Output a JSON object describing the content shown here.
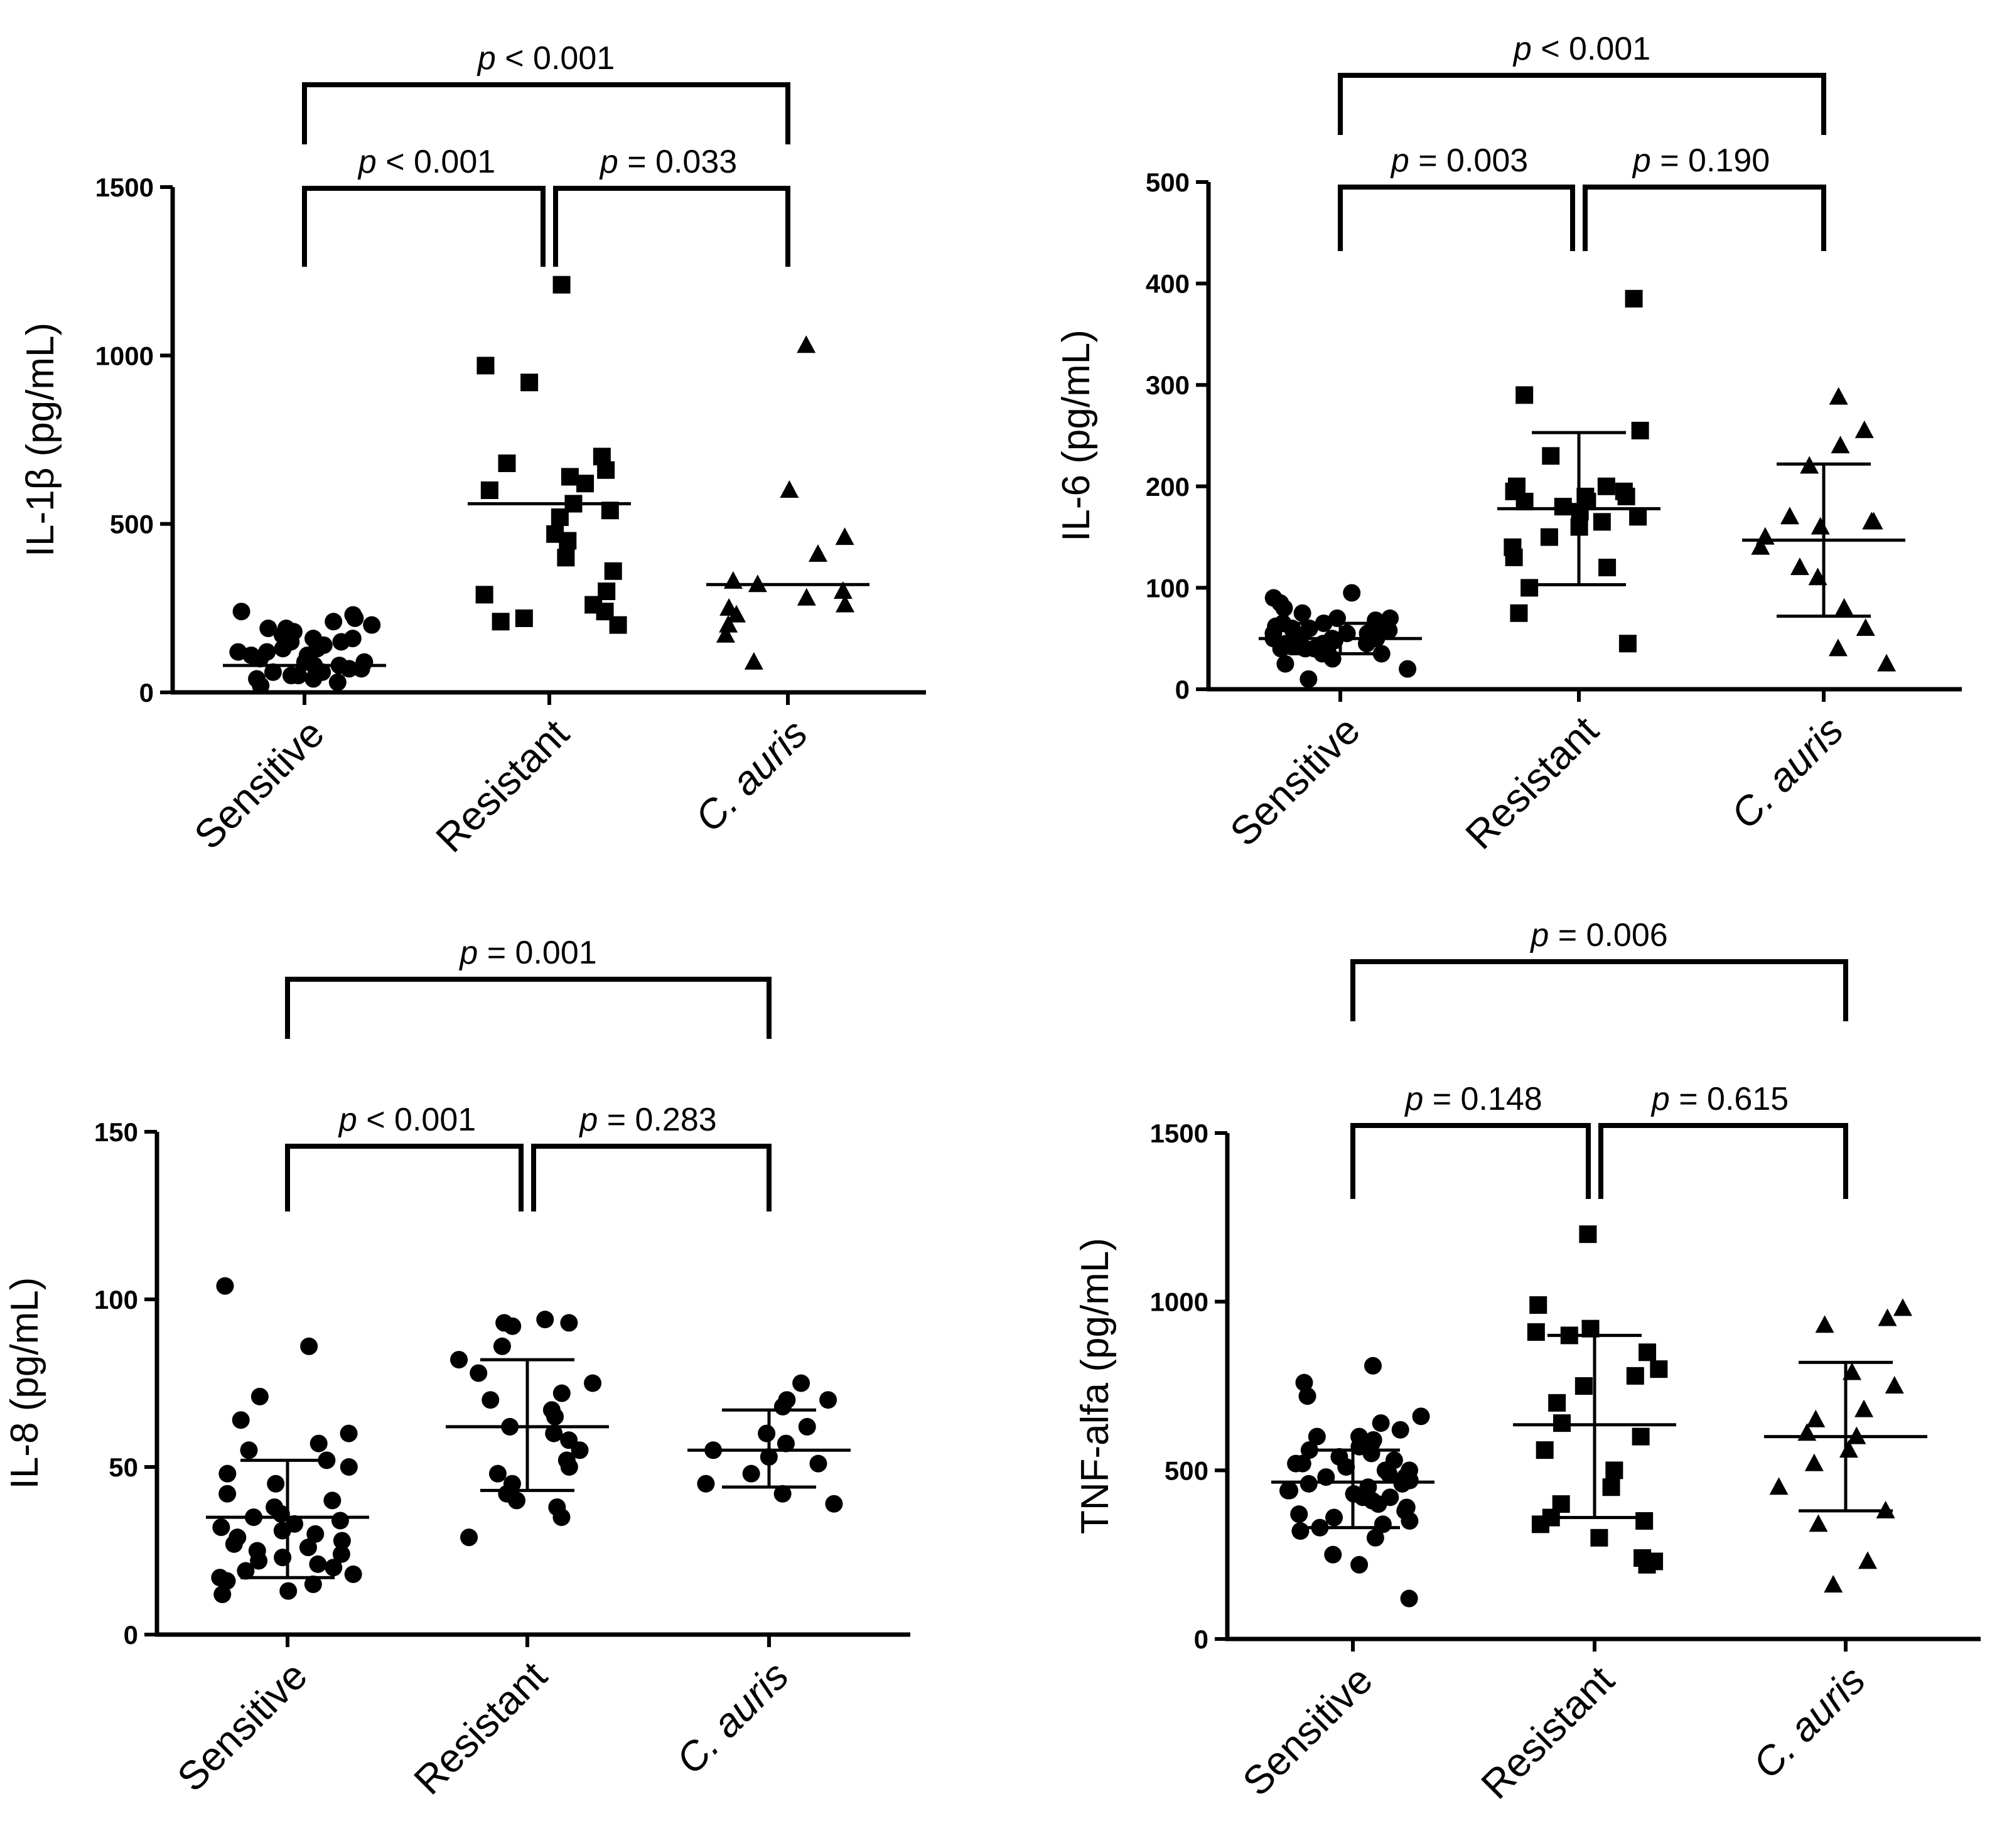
{
  "chart_data": [
    {
      "id": "il1b",
      "type": "scatter",
      "ylabel": "IL-1β (pg/mL)",
      "ylim": [
        0,
        1500
      ],
      "yticks": [
        "0",
        "500",
        "1000",
        "1500"
      ],
      "categories": [
        "Sensitive",
        "Resistant",
        "C. auris"
      ],
      "category_markers": [
        "circle",
        "square",
        "triangle"
      ],
      "series": [
        {
          "name": "Sensitive",
          "center": 80,
          "values": [
            20,
            30,
            40,
            50,
            60,
            70,
            80,
            90,
            100,
            110,
            120,
            130,
            140,
            150,
            160,
            170,
            180,
            190,
            200,
            210,
            220,
            230,
            240,
            60,
            90,
            120,
            150,
            40,
            70,
            100,
            130,
            160,
            190,
            50,
            80,
            110,
            140
          ]
        },
        {
          "name": "Resistant",
          "center": 560,
          "values": [
            1210,
            970,
            920,
            700,
            680,
            660,
            640,
            620,
            600,
            560,
            540,
            520,
            470,
            450,
            400,
            360,
            300,
            290,
            260,
            240,
            220,
            210,
            200
          ]
        },
        {
          "name": "C. auris",
          "center": 320,
          "values": [
            1030,
            600,
            460,
            410,
            330,
            320,
            300,
            280,
            260,
            250,
            230,
            200,
            170,
            90
          ]
        }
      ],
      "comparisons": [
        {
          "label": "p < 0.001",
          "from": "Sensitive",
          "to": "Resistant"
        },
        {
          "label": "p = 0.033",
          "from": "Resistant",
          "to": "C. auris"
        },
        {
          "label": "p < 0.001",
          "from": "Sensitive",
          "to": "C. auris"
        }
      ]
    },
    {
      "id": "il6",
      "type": "scatter",
      "ylabel": "IL-6 (pg/mL)",
      "ylim": [
        0,
        500
      ],
      "yticks": [
        "0",
        "100",
        "200",
        "300",
        "400",
        "500"
      ],
      "categories": [
        "Sensitive",
        "Resistant",
        "C. auris"
      ],
      "category_markers": [
        "circle",
        "square",
        "triangle"
      ],
      "series": [
        {
          "name": "Sensitive",
          "center": 50,
          "sd": [
            35,
            65
          ],
          "values": [
            10,
            20,
            25,
            30,
            35,
            38,
            40,
            42,
            45,
            48,
            50,
            52,
            55,
            58,
            60,
            62,
            65,
            68,
            70,
            75,
            80,
            85,
            90,
            95,
            45,
            50,
            55,
            60,
            40,
            45,
            50,
            55,
            60,
            65,
            70,
            35,
            40,
            45
          ]
        },
        {
          "name": "Resistant",
          "center": 178,
          "sd": [
            103,
            253
          ],
          "values": [
            385,
            290,
            255,
            230,
            200,
            200,
            195,
            195,
            190,
            190,
            185,
            185,
            180,
            175,
            170,
            165,
            160,
            150,
            140,
            130,
            120,
            100,
            75,
            45
          ]
        },
        {
          "name": "C. auris",
          "center": 147,
          "sd": [
            72,
            222
          ],
          "values": [
            288,
            255,
            240,
            220,
            170,
            165,
            165,
            160,
            150,
            140,
            120,
            110,
            80,
            60,
            40,
            25
          ]
        }
      ],
      "comparisons": [
        {
          "label": "p = 0.003",
          "from": "Sensitive",
          "to": "Resistant"
        },
        {
          "label": "p = 0.190",
          "from": "Resistant",
          "to": "C. auris"
        },
        {
          "label": "p < 0.001",
          "from": "Sensitive",
          "to": "C. auris"
        }
      ]
    },
    {
      "id": "il8",
      "type": "scatter",
      "ylabel": "IL-8 (pg/mL)",
      "ylim": [
        0,
        150
      ],
      "yticks": [
        "0",
        "50",
        "100",
        "150"
      ],
      "categories": [
        "Sensitive",
        "Resistant",
        "C. auris"
      ],
      "category_markers": [
        "circle",
        "circle",
        "circle"
      ],
      "series": [
        {
          "name": "Sensitive",
          "center": 35,
          "sd": [
            17,
            52
          ],
          "values": [
            104,
            86,
            71,
            64,
            60,
            57,
            55,
            52,
            50,
            48,
            45,
            42,
            40,
            38,
            36,
            35,
            34,
            33,
            32,
            31,
            30,
            29,
            28,
            27,
            26,
            25,
            24,
            23,
            22,
            21,
            20,
            19,
            18,
            17,
            16,
            15,
            13,
            12
          ]
        },
        {
          "name": "Resistant",
          "center": 62,
          "sd": [
            43,
            82
          ],
          "values": [
            94,
            93,
            93,
            92,
            86,
            82,
            78,
            75,
            72,
            70,
            67,
            65,
            62,
            60,
            58,
            55,
            52,
            50,
            48,
            45,
            42,
            40,
            38,
            35,
            29
          ]
        },
        {
          "name": "C. auris",
          "center": 55,
          "sd": [
            44,
            67
          ],
          "values": [
            75,
            70,
            70,
            68,
            62,
            60,
            57,
            55,
            53,
            51,
            48,
            45,
            42,
            39
          ]
        }
      ],
      "comparisons": [
        {
          "label": "p < 0.001",
          "from": "Sensitive",
          "to": "Resistant"
        },
        {
          "label": "p = 0.283",
          "from": "Resistant",
          "to": "C. auris"
        },
        {
          "label": "p = 0.001",
          "from": "Sensitive",
          "to": "C. auris"
        }
      ]
    },
    {
      "id": "tnf",
      "type": "scatter",
      "ylabel": "TNF-alfa (pg/mL)",
      "ylim": [
        0,
        1500
      ],
      "yticks": [
        "0",
        "500",
        "1000",
        "1500"
      ],
      "categories": [
        "Sensitive",
        "Resistant",
        "C. auris"
      ],
      "category_markers": [
        "circle",
        "square",
        "triangle"
      ],
      "series": [
        {
          "name": "Sensitive",
          "center": 465,
          "sd": [
            330,
            560
          ],
          "values": [
            810,
            760,
            720,
            660,
            640,
            620,
            600,
            600,
            590,
            580,
            570,
            560,
            550,
            540,
            530,
            520,
            510,
            500,
            490,
            480,
            470,
            460,
            450,
            440,
            430,
            420,
            410,
            400,
            390,
            380,
            370,
            360,
            350,
            340,
            330,
            320,
            300,
            250,
            220,
            120,
            460,
            480,
            500,
            520,
            440,
            420
          ]
        },
        {
          "name": "Resistant",
          "center": 635,
          "sd": [
            360,
            900
          ],
          "values": [
            1200,
            990,
            920,
            910,
            900,
            850,
            800,
            780,
            750,
            700,
            640,
            600,
            560,
            500,
            450,
            400,
            360,
            350,
            340,
            300,
            240,
            230,
            220
          ]
        },
        {
          "name": "C. auris",
          "center": 600,
          "sd": [
            380,
            820
          ],
          "values": [
            980,
            950,
            930,
            790,
            750,
            680,
            650,
            610,
            600,
            560,
            520,
            450,
            380,
            340,
            230,
            160
          ]
        }
      ],
      "comparisons": [
        {
          "label": "p = 0.148",
          "from": "Sensitive",
          "to": "Resistant"
        },
        {
          "label": "p = 0.615",
          "from": "Resistant",
          "to": "C. auris"
        },
        {
          "label": "p = 0.006",
          "from": "Sensitive",
          "to": "C. auris"
        }
      ]
    }
  ]
}
